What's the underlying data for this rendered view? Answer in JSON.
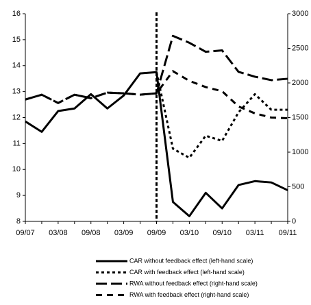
{
  "chart_data": {
    "type": "line",
    "categories": [
      "09/07",
      null,
      "03/08",
      null,
      "09/08",
      null,
      "03/09",
      null,
      "09/09",
      null,
      "03/10",
      null,
      "09/10",
      null,
      "03/11",
      null,
      "09/11"
    ],
    "ylim": [
      8,
      16
    ],
    "yticks": [
      8,
      9,
      10,
      11,
      12,
      13,
      14,
      15,
      16
    ],
    "y2lim": [
      0,
      3000
    ],
    "y2ticks": [
      0,
      500,
      1000,
      1500,
      2000,
      2500,
      3000
    ],
    "marker_line_index": 8,
    "series": [
      {
        "name": "CAR without feedback effect (left-hand scale)",
        "color": "#000000",
        "dash": "solid",
        "values": [
          11.85,
          11.45,
          12.25,
          12.35,
          12.9,
          12.35,
          12.85,
          13.7,
          13.75,
          8.75,
          8.2,
          9.1,
          8.5,
          9.4,
          9.55,
          9.5,
          9.2
        ]
      },
      {
        "name": "CAR with feedback effect (left-hand scale)",
        "color": "#000000",
        "dash": "dotted",
        "values": [
          null,
          null,
          null,
          null,
          null,
          null,
          null,
          null,
          13.75,
          10.8,
          10.45,
          11.3,
          11.1,
          12.2,
          12.9,
          12.3,
          12.3
        ]
      },
      {
        "name": "RWA without feedback effect (right-hand scale)",
        "color": "#000000",
        "dash": "longdash",
        "axis": "y2",
        "values": [
          1760,
          1830,
          1710,
          1830,
          1780,
          1860,
          1850,
          1830,
          1850,
          2680,
          2580,
          2450,
          2470,
          2160,
          2090,
          2040,
          2060
        ]
      },
      {
        "name": "RWA with feedback effect (right-hand scale)",
        "color": "#000000",
        "dash": "dashed",
        "axis": "y2",
        "values": [
          1760,
          1830,
          1710,
          1830,
          1780,
          1860,
          1850,
          1830,
          1850,
          2170,
          2030,
          1940,
          1880,
          1660,
          1560,
          1500,
          1490
        ]
      }
    ]
  }
}
